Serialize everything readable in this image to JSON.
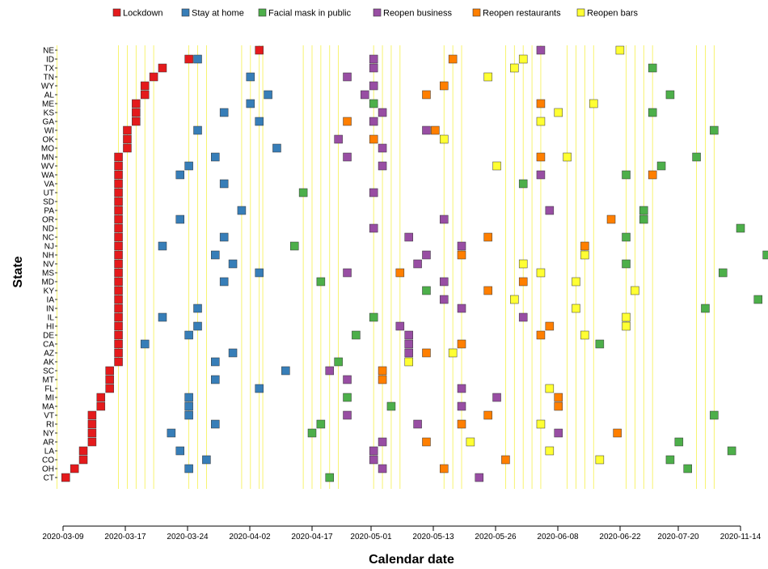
{
  "chart_data": {
    "type": "timeline",
    "xlabel": "Calendar date",
    "ylabel": "State",
    "x_ticks": [
      "2020-03-09",
      "2020-03-17",
      "2020-03-24",
      "2020-04-02",
      "2020-04-17",
      "2020-05-01",
      "2020-05-13",
      "2020-05-26",
      "2020-06-08",
      "2020-06-22",
      "2020-07-20",
      "2020-11-14"
    ],
    "legend": [
      {
        "key": "lockdown",
        "label": "Lockdown",
        "color": "#e41a1c"
      },
      {
        "key": "stay",
        "label": "Stay at home",
        "color": "#377eb8"
      },
      {
        "key": "mask",
        "label": "Facial mask in public",
        "color": "#4daf4a"
      },
      {
        "key": "business",
        "label": "Reopen business",
        "color": "#984ea3"
      },
      {
        "key": "restaurants",
        "label": "Reopen restaurants",
        "color": "#ff7f00"
      },
      {
        "key": "bars",
        "label": "Reopen bars",
        "color": "#ffff33"
      }
    ],
    "states": [
      "NE",
      "ID",
      "TX",
      "TN",
      "WY",
      "AL",
      "ME",
      "KS",
      "GA",
      "WI",
      "OK",
      "MO",
      "MN",
      "WV",
      "WA",
      "VA",
      "UT",
      "SD",
      "PA",
      "OR",
      "ND",
      "NC",
      "NJ",
      "NH",
      "NV",
      "MS",
      "MD",
      "KY",
      "IA",
      "IN",
      "IL",
      "HI",
      "DE",
      "CA",
      "AZ",
      "AK",
      "SC",
      "MT",
      "FL",
      "MI",
      "MA",
      "VT",
      "RI",
      "NY",
      "AR",
      "LA",
      "CO",
      "OH",
      "CT"
    ],
    "events": {
      "NE": {
        "lockdown": 22.3,
        "business": 54.3,
        "bars": 63.3
      },
      "ID": {
        "lockdown": 14.3,
        "stay": 15.3,
        "business": 35.3,
        "restaurants": 44.3,
        "bars": 52.3
      },
      "TX": {
        "lockdown": 11.3,
        "business": 35.3,
        "bars": 51.3,
        "mask": 67.0
      },
      "TN": {
        "lockdown": 10.3,
        "stay": 21.3,
        "business": 32.3,
        "bars": 48.3
      },
      "WY": {
        "lockdown": 9.3,
        "business": 35.3,
        "restaurants": 43.3
      },
      "AL": {
        "lockdown": 9.3,
        "stay": 23.3,
        "business": 34.3,
        "restaurants": 41.3,
        "mask": 69.0
      },
      "ME": {
        "lockdown": 8.3,
        "stay": 21.3,
        "mask": 35.3,
        "restaurants": 54.3,
        "bars": 60.3
      },
      "KS": {
        "lockdown": 8.3,
        "stay": 18.3,
        "business": 36.3,
        "bars": 56.3,
        "mask": 67.0
      },
      "GA": {
        "lockdown": 8.3,
        "stay": 22.3,
        "restaurants": 32.3,
        "business": 35.3,
        "bars": 54.3
      },
      "WI": {
        "lockdown": 7.3,
        "stay": 15.3,
        "business": 41.3,
        "restaurants": 42.3,
        "mask": 74.0
      },
      "OK": {
        "lockdown": 7.3,
        "business": 31.3,
        "restaurants": 35.3,
        "bars": 43.3
      },
      "MO": {
        "lockdown": 7.3,
        "stay": 24.3,
        "business": 36.3
      },
      "MN": {
        "lockdown": 6.3,
        "stay": 17.3,
        "business": 32.3,
        "restaurants": 54.3,
        "bars": 57.3,
        "mask": 72.0
      },
      "WV": {
        "lockdown": 6.3,
        "stay": 14.3,
        "business": 36.3,
        "bars": 49.3,
        "mask": 68.0
      },
      "WA": {
        "lockdown": 6.3,
        "stay": 13.3,
        "business": 54.3,
        "mask": 64.0,
        "restaurants": 67.0
      },
      "VA": {
        "lockdown": 6.3,
        "stay": 18.3,
        "mask": 52.3
      },
      "UT": {
        "lockdown": 6.3,
        "mask": 27.3,
        "business": 35.3
      },
      "SD": {
        "lockdown": 6.3
      },
      "PA": {
        "lockdown": 6.3,
        "stay": 20.3,
        "business": 55.3,
        "mask": 66.0
      },
      "OR": {
        "lockdown": 6.3,
        "stay": 13.3,
        "business": 43.3,
        "restaurants": 62.3,
        "mask": 66.0
      },
      "ND": {
        "lockdown": 6.3,
        "business": 35.3,
        "mask": 77.0
      },
      "NC": {
        "lockdown": 6.3,
        "stay": 18.3,
        "business": 39.3,
        "restaurants": 48.3,
        "mask": 64.0
      },
      "NJ": {
        "lockdown": 6.3,
        "stay": 11.3,
        "mask": 26.3,
        "business": 45.3,
        "restaurants": 59.3
      },
      "NH": {
        "lockdown": 6.3,
        "stay": 17.3,
        "business": 41.3,
        "restaurants": 45.3,
        "bars": 59.3,
        "mask": 80.0
      },
      "NV": {
        "lockdown": 6.3,
        "stay": 19.3,
        "business": 40.3,
        "bars": 52.3,
        "mask": 64.0
      },
      "MS": {
        "lockdown": 6.3,
        "stay": 22.3,
        "business": 32.3,
        "restaurants": 38.3,
        "bars": 54.3,
        "mask": 75.0
      },
      "MD": {
        "lockdown": 6.3,
        "stay": 18.3,
        "mask": 29.3,
        "business": 43.3,
        "restaurants": 52.3,
        "bars": 58.3
      },
      "KY": {
        "lockdown": 6.3,
        "mask": 41.3,
        "restaurants": 48.3,
        "bars": 65.0
      },
      "IA": {
        "lockdown": 6.3,
        "business": 43.3,
        "bars": 51.3,
        "mask": 79.0
      },
      "IN": {
        "lockdown": 6.3,
        "stay": 15.3,
        "business": 45.3,
        "bars": 58.3,
        "mask": 73.0
      },
      "IL": {
        "lockdown": 6.3,
        "stay": 11.3,
        "mask": 35.3,
        "business": 52.3,
        "bars": 64.0
      },
      "HI": {
        "lockdown": 6.3,
        "stay": 15.3,
        "business": 38.3,
        "restaurants": 55.3,
        "bars": 64.0
      },
      "DE": {
        "lockdown": 6.3,
        "stay": 14.3,
        "mask": 33.3,
        "business": 39.3,
        "restaurants": 54.3,
        "bars": 59.3
      },
      "CA": {
        "lockdown": 6.3,
        "stay": 9.3,
        "business": 39.3,
        "restaurants": 45.3,
        "mask": 61.0
      },
      "AZ": {
        "lockdown": 6.3,
        "stay": 19.3,
        "business": 39.3,
        "restaurants": 41.3,
        "bars": 44.3
      },
      "AK": {
        "lockdown": 6.3,
        "stay": 17.3,
        "mask": 31.3,
        "bars": 39.3
      },
      "SC": {
        "lockdown": 5.3,
        "stay": 25.3,
        "business": 30.3,
        "restaurants": 36.3
      },
      "MT": {
        "lockdown": 5.3,
        "stay": 17.3,
        "business": 32.3,
        "restaurants": 36.3
      },
      "FL": {
        "lockdown": 5.3,
        "stay": 22.3,
        "business": 45.3,
        "bars": 55.3
      },
      "MI": {
        "lockdown": 4.3,
        "stay": 14.3,
        "mask": 32.3,
        "business": 49.3,
        "restaurants": 56.3
      },
      "MA": {
        "lockdown": 4.3,
        "stay": 14.3,
        "mask": 37.3,
        "business": 45.3,
        "restaurants": 56.3
      },
      "VT": {
        "lockdown": 3.3,
        "stay": 14.3,
        "business": 32.3,
        "restaurants": 48.3,
        "mask": 74.0
      },
      "RI": {
        "lockdown": 3.3,
        "stay": 17.3,
        "mask": 29.3,
        "business": 40.3,
        "restaurants": 45.3,
        "bars": 54.3
      },
      "NY": {
        "lockdown": 3.3,
        "stay": 12.3,
        "mask": 28.3,
        "business": 56.3,
        "restaurants": 63.0
      },
      "AR": {
        "lockdown": 3.3,
        "business": 36.3,
        "restaurants": 41.3,
        "bars": 46.3,
        "mask": 70.0
      },
      "LA": {
        "lockdown": 2.3,
        "stay": 13.3,
        "business": 35.3,
        "bars": 55.3,
        "mask": 76.0
      },
      "CO": {
        "lockdown": 2.3,
        "stay": 16.3,
        "business": 35.3,
        "restaurants": 50.3,
        "bars": 61.0,
        "mask": 69.0
      },
      "OH": {
        "lockdown": 1.3,
        "stay": 14.3,
        "business": 36.3,
        "restaurants": 43.3,
        "mask": 71.0
      },
      "CT": {
        "lockdown": 0.3,
        "mask": 30.3,
        "business": 47.3
      }
    }
  }
}
